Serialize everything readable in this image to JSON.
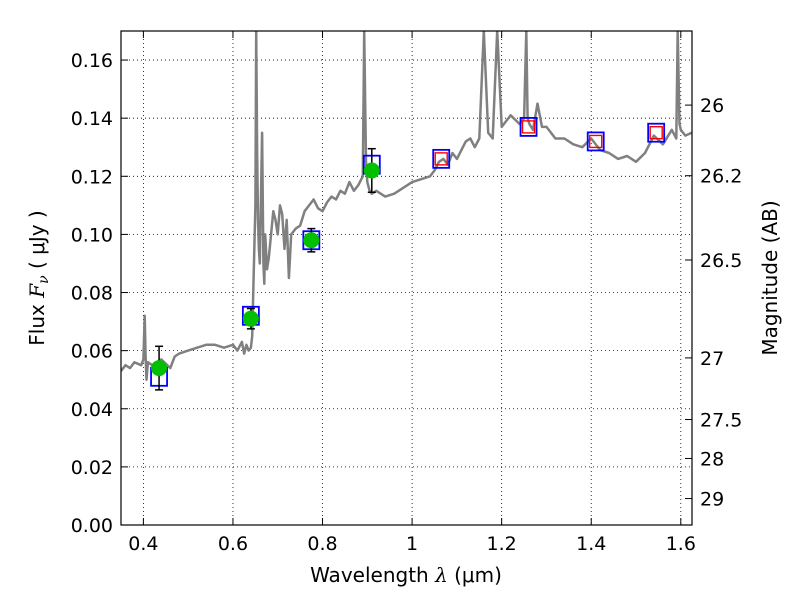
{
  "chart_data": {
    "type": "scatter",
    "xlabel": "Wavelength  λ (μm)",
    "xlabel_parts": {
      "prefix": "Wavelength  ",
      "symbol": "λ",
      "suffix": " (μm)"
    },
    "ylabel": "Flux  Fν  ( μJy )",
    "ylabel_parts": {
      "prefix": "Flux  ",
      "symbol": "F",
      "subscript": "ν",
      "suffix": "  ( μJy )"
    },
    "y2label": "Magnitude (AB)",
    "xlim": [
      0.35,
      1.625
    ],
    "ylim": [
      0.0,
      0.17
    ],
    "grid": true,
    "x_ticks": [
      0.4,
      0.6,
      0.8,
      1.0,
      1.2,
      1.4,
      1.6
    ],
    "x_tick_labels": [
      "0.4",
      "0.6",
      "0.8",
      "1",
      "1.2",
      "1.4",
      "1.6"
    ],
    "y_ticks": [
      0.0,
      0.02,
      0.04,
      0.06,
      0.08,
      0.1,
      0.12,
      0.14,
      0.16
    ],
    "y_tick_labels": [
      "0.00",
      "0.02",
      "0.04",
      "0.06",
      "0.08",
      "0.10",
      "0.12",
      "0.14",
      "0.16"
    ],
    "y2_tick_labels": [
      "26",
      "26.2",
      "26.5",
      "27",
      "27.5",
      "28",
      "29"
    ],
    "y2_tick_values_flux": [
      0.1445,
      0.1202,
      0.0912,
      0.0575,
      0.0363,
      0.0229,
      0.0091
    ],
    "colors": {
      "spectrum": "#808080",
      "observed": "#00c000",
      "model_box": "#0000ff",
      "model_cross": "#ff0000",
      "grid": "#000000"
    },
    "series": [
      {
        "kind": "spectrum",
        "x": [
          0.35,
          0.36,
          0.37,
          0.38,
          0.395,
          0.4,
          0.403,
          0.405,
          0.407,
          0.41,
          0.42,
          0.44,
          0.46,
          0.47,
          0.48,
          0.5,
          0.52,
          0.54,
          0.56,
          0.58,
          0.6,
          0.61,
          0.62,
          0.625,
          0.63,
          0.635,
          0.64,
          0.643,
          0.646,
          0.65,
          0.652,
          0.654,
          0.656,
          0.658,
          0.66,
          0.665,
          0.668,
          0.67,
          0.672,
          0.676,
          0.68,
          0.69,
          0.695,
          0.7,
          0.705,
          0.71,
          0.715,
          0.72,
          0.725,
          0.73,
          0.74,
          0.75,
          0.76,
          0.77,
          0.78,
          0.79,
          0.8,
          0.81,
          0.82,
          0.83,
          0.84,
          0.85,
          0.86,
          0.87,
          0.88,
          0.89,
          0.893,
          0.897,
          0.9,
          0.905,
          0.91,
          0.92,
          0.94,
          0.96,
          0.98,
          1.0,
          1.02,
          1.04,
          1.05,
          1.06,
          1.07,
          1.08,
          1.09,
          1.1,
          1.12,
          1.13,
          1.14,
          1.15,
          1.16,
          1.17,
          1.18,
          1.19,
          1.2,
          1.22,
          1.24,
          1.25,
          1.255,
          1.258,
          1.262,
          1.27,
          1.28,
          1.29,
          1.3,
          1.32,
          1.34,
          1.36,
          1.38,
          1.4,
          1.42,
          1.44,
          1.46,
          1.48,
          1.5,
          1.52,
          1.54,
          1.56,
          1.58,
          1.59,
          1.593,
          1.597,
          1.6,
          1.61,
          1.625
        ],
        "y": [
          0.053,
          0.055,
          0.054,
          0.056,
          0.055,
          0.057,
          0.072,
          0.058,
          0.05,
          0.056,
          0.055,
          0.057,
          0.054,
          0.058,
          0.059,
          0.06,
          0.061,
          0.062,
          0.062,
          0.061,
          0.062,
          0.06,
          0.063,
          0.059,
          0.062,
          0.06,
          0.061,
          0.065,
          0.085,
          0.11,
          0.17,
          0.13,
          0.105,
          0.095,
          0.09,
          0.135,
          0.09,
          0.083,
          0.1,
          0.088,
          0.092,
          0.108,
          0.105,
          0.1,
          0.11,
          0.107,
          0.095,
          0.105,
          0.085,
          0.1,
          0.102,
          0.103,
          0.108,
          0.11,
          0.112,
          0.109,
          0.108,
          0.111,
          0.113,
          0.112,
          0.115,
          0.114,
          0.118,
          0.115,
          0.117,
          0.12,
          0.17,
          0.125,
          0.118,
          0.115,
          0.114,
          0.115,
          0.113,
          0.114,
          0.116,
          0.118,
          0.119,
          0.12,
          0.122,
          0.125,
          0.126,
          0.124,
          0.128,
          0.126,
          0.132,
          0.133,
          0.13,
          0.133,
          0.17,
          0.135,
          0.133,
          0.17,
          0.137,
          0.141,
          0.138,
          0.14,
          0.17,
          0.14,
          0.138,
          0.136,
          0.145,
          0.137,
          0.137,
          0.133,
          0.133,
          0.131,
          0.13,
          0.133,
          0.129,
          0.128,
          0.126,
          0.127,
          0.125,
          0.128,
          0.134,
          0.131,
          0.136,
          0.133,
          0.17,
          0.138,
          0.136,
          0.134,
          0.135
        ]
      },
      {
        "kind": "observed",
        "x": [
          0.435,
          0.64,
          0.775,
          0.91
        ],
        "y": [
          0.054,
          0.071,
          0.098,
          0.122
        ],
        "yerr": [
          0.0075,
          0.0035,
          0.004,
          0.0075
        ]
      },
      {
        "kind": "model",
        "x": [
          0.435,
          0.64,
          0.775,
          0.91,
          1.065,
          1.26,
          1.41,
          1.545
        ],
        "y": [
          0.051,
          0.072,
          0.098,
          0.124,
          0.126,
          0.137,
          0.132,
          0.135
        ],
        "crossed": [
          false,
          false,
          false,
          false,
          true,
          true,
          true,
          true
        ]
      }
    ]
  }
}
